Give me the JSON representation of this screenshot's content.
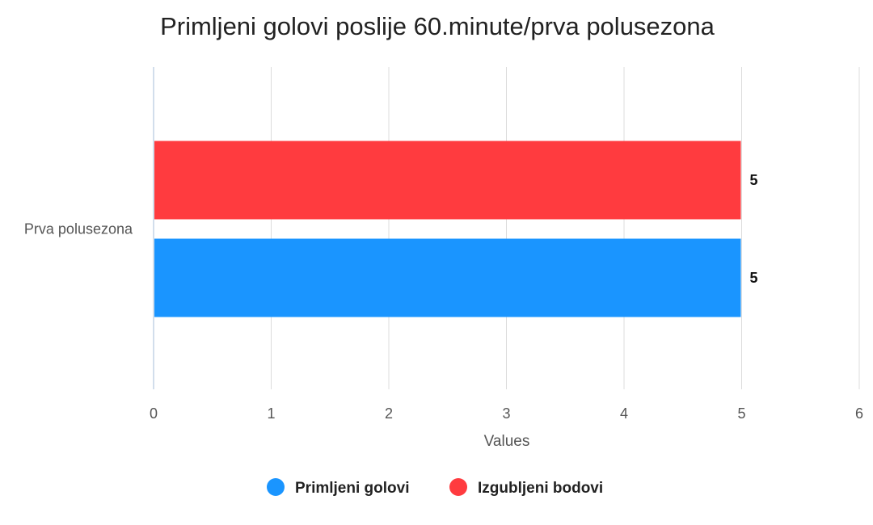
{
  "chart_data": {
    "type": "bar",
    "orientation": "horizontal",
    "title": "Primljeni golovi poslije 60.minute/prva polusezona",
    "xlabel": "Values",
    "ylabel": "",
    "categories": [
      "Prva polusezona"
    ],
    "xlim": [
      0,
      6
    ],
    "xticks": [
      "0",
      "1",
      "2",
      "3",
      "4",
      "5",
      "6"
    ],
    "grid": true,
    "legend_position": "bottom",
    "data_labels": true,
    "series": [
      {
        "name": "Primljeni golovi",
        "values": [
          5
        ],
        "color": "#1a95ff"
      },
      {
        "name": "Izgubljeni bodovi",
        "values": [
          5
        ],
        "color": "#ff3b3f"
      }
    ]
  }
}
